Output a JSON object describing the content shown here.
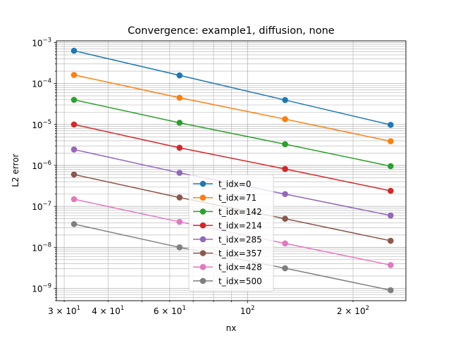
{
  "chart_data": {
    "type": "line",
    "title": "Convergence: example1, diffusion, none",
    "xlabel": "nx",
    "ylabel": "L2 error",
    "xscale": "log",
    "yscale": "log",
    "xlim": [
      28.5,
      283
    ],
    "ylim": [
      5e-10,
      0.0011
    ],
    "grid": "both",
    "legend_placement": "lower-center",
    "x": [
      32,
      64,
      128,
      256
    ],
    "x_ticks": [
      {
        "value": 30,
        "base": "3",
        "exp": "1"
      },
      {
        "value": 40,
        "base": "4",
        "exp": "1"
      },
      {
        "value": 60,
        "base": "6",
        "exp": "1"
      },
      {
        "value": 100,
        "base": "",
        "exp": "2"
      },
      {
        "value": 200,
        "base": "2",
        "exp": "2"
      }
    ],
    "y_ticks": [
      {
        "value": 1e-09,
        "exp": "−9"
      },
      {
        "value": 1e-08,
        "exp": "−8"
      },
      {
        "value": 1e-07,
        "exp": "−7"
      },
      {
        "value": 1e-06,
        "exp": "−6"
      },
      {
        "value": 1e-05,
        "exp": "−5"
      },
      {
        "value": 0.0001,
        "exp": "−4"
      },
      {
        "value": 0.001,
        "exp": "−3"
      }
    ],
    "series": [
      {
        "name": "t_idx=0",
        "color": "#1f77b4",
        "values": [
          0.00063,
          0.000158,
          3.95e-05,
          9.8e-06
        ]
      },
      {
        "name": "t_idx=71",
        "color": "#ff7f0e",
        "values": [
          0.000162,
          4.5e-05,
          1.35e-05,
          3.9e-06
        ]
      },
      {
        "name": "t_idx=142",
        "color": "#2ca02c",
        "values": [
          4e-05,
          1.1e-05,
          3.3e-06,
          9.6e-07
        ]
      },
      {
        "name": "t_idx=214",
        "color": "#d62728",
        "values": [
          1e-05,
          2.7e-06,
          8.2e-07,
          2.4e-07
        ]
      },
      {
        "name": "t_idx=285",
        "color": "#9467bd",
        "values": [
          2.45e-06,
          6.6e-07,
          2e-07,
          6e-08
        ]
      },
      {
        "name": "t_idx=357",
        "color": "#8c564b",
        "values": [
          6e-07,
          1.65e-07,
          5e-08,
          1.45e-08
        ]
      },
      {
        "name": "t_idx=428",
        "color": "#e377c2",
        "values": [
          1.5e-07,
          4.2e-08,
          1.25e-08,
          3.7e-09
        ]
      },
      {
        "name": "t_idx=500",
        "color": "#7f7f7f",
        "values": [
          3.7e-08,
          1e-08,
          3.1e-09,
          9e-10
        ]
      }
    ]
  }
}
